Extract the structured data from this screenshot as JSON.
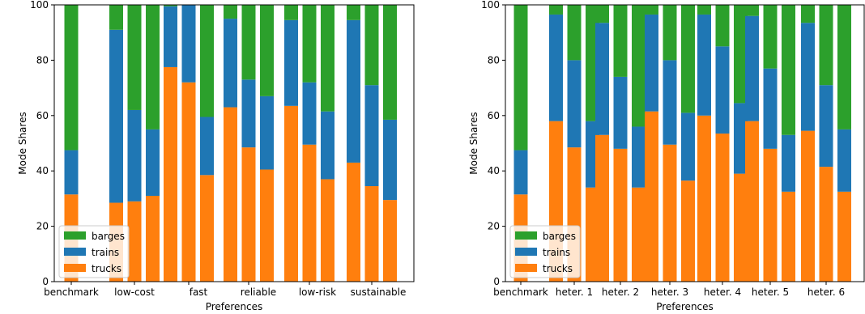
{
  "chart_data": [
    {
      "type": "bar",
      "stacked": true,
      "xlabel": "Preferences",
      "ylabel": "Mode Shares",
      "ylim": [
        0,
        100
      ],
      "yticks": [
        0,
        20,
        40,
        60,
        80,
        100
      ],
      "legend": {
        "placement": "bottom-left",
        "entries": [
          "barges",
          "trains",
          "trucks"
        ]
      },
      "groups": [
        {
          "label": "benchmark",
          "bars": [
            {
              "trucks": 31.5,
              "trains": 16.0,
              "barges": 52.5
            }
          ]
        },
        {
          "label": "low-cost",
          "bars": [
            {
              "trucks": 28.5,
              "trains": 62.5,
              "barges": 9.0
            },
            {
              "trucks": 29.0,
              "trains": 33.0,
              "barges": 38.0
            },
            {
              "trucks": 31.0,
              "trains": 24.0,
              "barges": 45.0
            }
          ]
        },
        {
          "label": "fast",
          "bars": [
            {
              "trucks": 77.5,
              "trains": 22.0,
              "barges": 0.5
            },
            {
              "trucks": 72.0,
              "trains": 28.0,
              "barges": 0.0
            },
            {
              "trucks": 38.5,
              "trains": 21.0,
              "barges": 40.5
            }
          ]
        },
        {
          "label": "reliable",
          "bars": [
            {
              "trucks": 63.0,
              "trains": 32.0,
              "barges": 5.0
            },
            {
              "trucks": 48.5,
              "trains": 24.5,
              "barges": 27.0
            },
            {
              "trucks": 40.5,
              "trains": 26.5,
              "barges": 33.0
            }
          ]
        },
        {
          "label": "low-risk",
          "bars": [
            {
              "trucks": 63.5,
              "trains": 31.0,
              "barges": 5.5
            },
            {
              "trucks": 49.5,
              "trains": 22.5,
              "barges": 28.0
            },
            {
              "trucks": 37.0,
              "trains": 24.5,
              "barges": 38.5
            }
          ]
        },
        {
          "label": "sustainable",
          "bars": [
            {
              "trucks": 43.0,
              "trains": 51.5,
              "barges": 5.5
            },
            {
              "trucks": 34.5,
              "trains": 36.5,
              "barges": 29.0
            },
            {
              "trucks": 29.5,
              "trains": 29.0,
              "barges": 41.5
            }
          ]
        }
      ]
    },
    {
      "type": "bar",
      "stacked": true,
      "xlabel": "Preferences",
      "ylabel": "Mode Shares",
      "ylim": [
        0,
        100
      ],
      "yticks": [
        0,
        20,
        40,
        60,
        80,
        100
      ],
      "legend": {
        "placement": "bottom-left",
        "entries": [
          "barges",
          "trains",
          "trucks"
        ]
      },
      "groups": [
        {
          "label": "benchmark",
          "bars": [
            {
              "trucks": 31.5,
              "trains": 16.0,
              "barges": 52.5
            }
          ]
        },
        {
          "label": "heter. 1",
          "bars": [
            {
              "trucks": 58.0,
              "trains": 38.5,
              "barges": 3.5
            },
            {
              "trucks": 48.5,
              "trains": 31.5,
              "barges": 20.0
            },
            {
              "trucks": 34.0,
              "trains": 24.0,
              "barges": 42.0
            }
          ]
        },
        {
          "label": "heter. 2",
          "bars": [
            {
              "trucks": 53.0,
              "trains": 40.5,
              "barges": 6.5
            },
            {
              "trucks": 48.0,
              "trains": 26.0,
              "barges": 26.0
            },
            {
              "trucks": 34.0,
              "trains": 22.0,
              "barges": 44.0
            }
          ]
        },
        {
          "label": "heter. 3",
          "bars": [
            {
              "trucks": 61.5,
              "trains": 35.0,
              "barges": 3.5
            },
            {
              "trucks": 49.5,
              "trains": 30.5,
              "barges": 20.0
            },
            {
              "trucks": 36.5,
              "trains": 24.5,
              "barges": 39.0
            }
          ]
        },
        {
          "label": "heter. 4",
          "bars": [
            {
              "trucks": 60.0,
              "trains": 36.5,
              "barges": 3.5
            },
            {
              "trucks": 53.5,
              "trains": 31.5,
              "barges": 15.0
            },
            {
              "trucks": 39.0,
              "trains": 25.5,
              "barges": 35.5
            }
          ]
        },
        {
          "label": "heter. 5",
          "bars": [
            {
              "trucks": 58.0,
              "trains": 38.0,
              "barges": 4.0
            },
            {
              "trucks": 48.0,
              "trains": 29.0,
              "barges": 23.0
            },
            {
              "trucks": 32.5,
              "trains": 20.5,
              "barges": 47.0
            }
          ]
        },
        {
          "label": "heter. 6",
          "bars": [
            {
              "trucks": 54.5,
              "trains": 39.0,
              "barges": 6.5
            },
            {
              "trucks": 41.5,
              "trains": 29.5,
              "barges": 29.0
            },
            {
              "trucks": 32.5,
              "trains": 22.5,
              "barges": 45.0
            }
          ]
        }
      ]
    }
  ],
  "colors": {
    "trucks": "#ff7f0e",
    "trains": "#1f77b4",
    "barges": "#2ca02c",
    "axis": "#000000",
    "legend_border": "#cccccc"
  }
}
